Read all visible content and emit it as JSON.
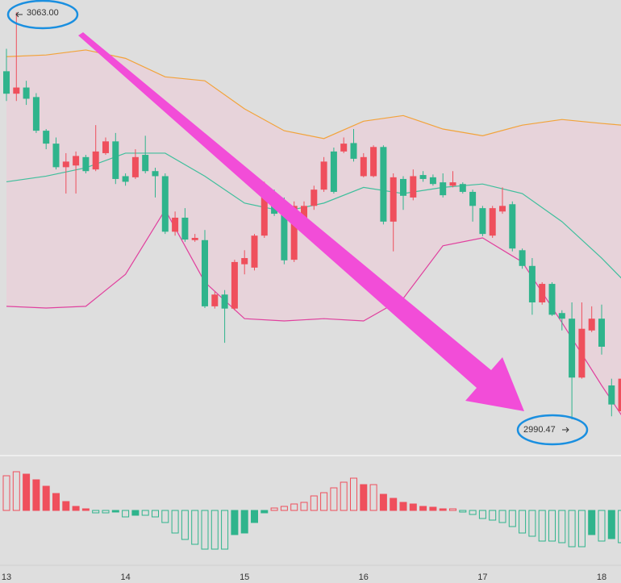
{
  "chart_data": {
    "type": "candlestick",
    "categories": [
      "13",
      null,
      null,
      null,
      null,
      null,
      null,
      null,
      null,
      null,
      null,
      null,
      "14",
      null,
      null,
      null,
      null,
      null,
      null,
      null,
      null,
      null,
      null,
      null,
      "15",
      null,
      null,
      null,
      null,
      null,
      null,
      null,
      null,
      null,
      null,
      null,
      "16",
      null,
      null,
      null,
      null,
      null,
      null,
      null,
      null,
      null,
      null,
      null,
      "17",
      null,
      null,
      null,
      null,
      null,
      null,
      null,
      null,
      null,
      null,
      null,
      "18",
      null,
      null
    ],
    "open": [
      3052.5,
      3048.5,
      3049.6,
      3047.9,
      3041.9,
      3039.6,
      3035.4,
      3035.7,
      3037.2,
      3035.0,
      3037.9,
      3040.0,
      3033.8,
      3033.6,
      3037.6,
      3034.7,
      3033.8,
      3023.9,
      3026.4,
      3022.4,
      3022.4,
      3010.6,
      3012.7,
      3010.2,
      3018.1,
      3017.5,
      3023.2,
      3030.7,
      3028.5,
      3018.9,
      3024.9,
      3028.5,
      3031.4,
      3038.2,
      3038.2,
      3039.7,
      3033.8,
      3033.8,
      3039.0,
      3025.7,
      3033.3,
      3030.0,
      3034.0,
      3033.6,
      3032.7,
      3032.1,
      3032.4,
      3031.0,
      3028.1,
      3023.2,
      3027.5,
      3028.8,
      3020.6,
      3017.8,
      3011.3,
      3014.6,
      3009.4,
      3008.4,
      2997.9,
      3006.3,
      3008.4,
      2996.5,
      2991.9
    ],
    "high": [
      3056.5,
      3063.0,
      3050.8,
      3048.6,
      3042.2,
      3040.7,
      3037.9,
      3038.2,
      3037.6,
      3042.9,
      3040.7,
      3041.5,
      3034.3,
      3038.6,
      3041.0,
      3035.3,
      3034.3,
      3027.5,
      3028.1,
      3023.5,
      3024.2,
      3013.2,
      3013.5,
      3018.9,
      3020.6,
      3023.5,
      3032.8,
      3031.4,
      3030.0,
      3029.3,
      3029.3,
      3032.1,
      3037.2,
      3038.9,
      3040.7,
      3042.2,
      3037.9,
      3039.3,
      3039.3,
      3034.3,
      3033.8,
      3035.0,
      3034.7,
      3034.1,
      3034.3,
      3034.7,
      3032.7,
      3031.4,
      3028.5,
      3028.5,
      3031.8,
      3029.3,
      3020.9,
      3019.2,
      3014.9,
      3014.9,
      3009.9,
      3011.3,
      3011.3,
      3010.6,
      3010.9,
      2997.7,
      2998.4
    ],
    "low": [
      3047.2,
      3047.2,
      3046.5,
      3041.5,
      3038.6,
      3035.0,
      3030.7,
      3030.7,
      3034.3,
      3034.7,
      3037.6,
      3032.4,
      3032.1,
      3033.3,
      3034.3,
      3030.0,
      3023.5,
      3023.2,
      3022.1,
      3022.1,
      3010.3,
      3010.2,
      3004.1,
      3009.9,
      3016.3,
      3017.0,
      3022.8,
      3026.7,
      3018.1,
      3018.5,
      3024.2,
      3027.8,
      3031.0,
      3030.7,
      3037.9,
      3036.4,
      3033.6,
      3033.6,
      3025.2,
      3020.4,
      3027.8,
      3029.5,
      3032.8,
      3032.1,
      3030.0,
      3031.8,
      3030.7,
      3025.7,
      3023.1,
      3022.8,
      3027.1,
      3020.4,
      3017.3,
      3009.1,
      3010.9,
      3008.9,
      3006.3,
      2990.47,
      2997.7,
      3006.0,
      3002.0,
      2991.0,
      2991.3
    ],
    "close": [
      3048.5,
      3049.6,
      3047.6,
      3041.9,
      3039.6,
      3035.4,
      3036.4,
      3037.4,
      3034.7,
      3038.2,
      3040.0,
      3033.3,
      3032.8,
      3037.2,
      3034.7,
      3033.8,
      3023.9,
      3026.4,
      3022.5,
      3022.8,
      3010.6,
      3012.7,
      3010.2,
      3018.5,
      3019.2,
      3023.2,
      3030.7,
      3027.1,
      3018.8,
      3028.5,
      3028.5,
      3031.4,
      3036.4,
      3031.0,
      3039.6,
      3036.9,
      3037.2,
      3039.0,
      3025.7,
      3033.6,
      3030.3,
      3033.8,
      3033.3,
      3032.4,
      3030.4,
      3032.7,
      3031.0,
      3028.5,
      3023.5,
      3028.1,
      3028.5,
      3020.9,
      3017.8,
      3011.3,
      3014.6,
      3009.1,
      3008.4,
      2997.9,
      3006.6,
      3008.4,
      3003.4,
      2993.1,
      2997.7
    ],
    "up_color": "#ef4f5c",
    "down_color": "#2fb48c",
    "ylim": [
      2985,
      3065.2
    ],
    "bands": {
      "x": [
        0,
        4,
        8,
        12,
        16,
        20,
        24,
        28,
        32,
        36,
        40,
        44,
        48,
        52,
        56,
        60,
        62
      ],
      "series": [
        {
          "color": "#f2a33a",
          "values": [
            3055.1,
            3055.4,
            3056.3,
            3054.8,
            3051.5,
            3050.8,
            3045.8,
            3041.9,
            3040.5,
            3043.6,
            3044.6,
            3042.2,
            3041.0,
            3042.9,
            3043.9,
            3043.2,
            3042.9
          ]
        },
        {
          "color": "#3fbf9c",
          "values": [
            3032.8,
            3033.8,
            3035.3,
            3037.9,
            3037.9,
            3033.8,
            3029.0,
            3027.5,
            3029.0,
            3031.8,
            3030.7,
            3031.8,
            3032.4,
            3030.7,
            3025.7,
            3019.2,
            3015.6
          ]
        },
        {
          "color": "#e0409e",
          "values": [
            3010.6,
            3010.3,
            3010.6,
            3016.3,
            3027.8,
            3014.9,
            3008.4,
            3008.0,
            3008.4,
            3008.0,
            3012.0,
            3021.4,
            3022.8,
            3018.5,
            3007.7,
            2996.5,
            2991.2
          ]
        }
      ],
      "fill": "#e8cfd8"
    },
    "macd": {
      "values": [
        43,
        48,
        45,
        38,
        30,
        21,
        11,
        5,
        2,
        -3,
        -3,
        -2,
        -8,
        -6,
        -6,
        -8,
        -15,
        -28,
        -36,
        -42,
        -48,
        -48,
        -48,
        -30,
        -28,
        -15,
        -3,
        3,
        5,
        8,
        10,
        18,
        22,
        28,
        35,
        40,
        32,
        32,
        20,
        15,
        10,
        8,
        5,
        4,
        2,
        2,
        -2,
        -5,
        -10,
        -12,
        -15,
        -20,
        -28,
        -32,
        -38,
        -38,
        -40,
        -45,
        -45,
        -30,
        -38,
        -35,
        -40
      ],
      "ylim": [
        -65,
        63
      ]
    },
    "annotations": [
      "3063.00",
      "2990.47"
    ]
  }
}
